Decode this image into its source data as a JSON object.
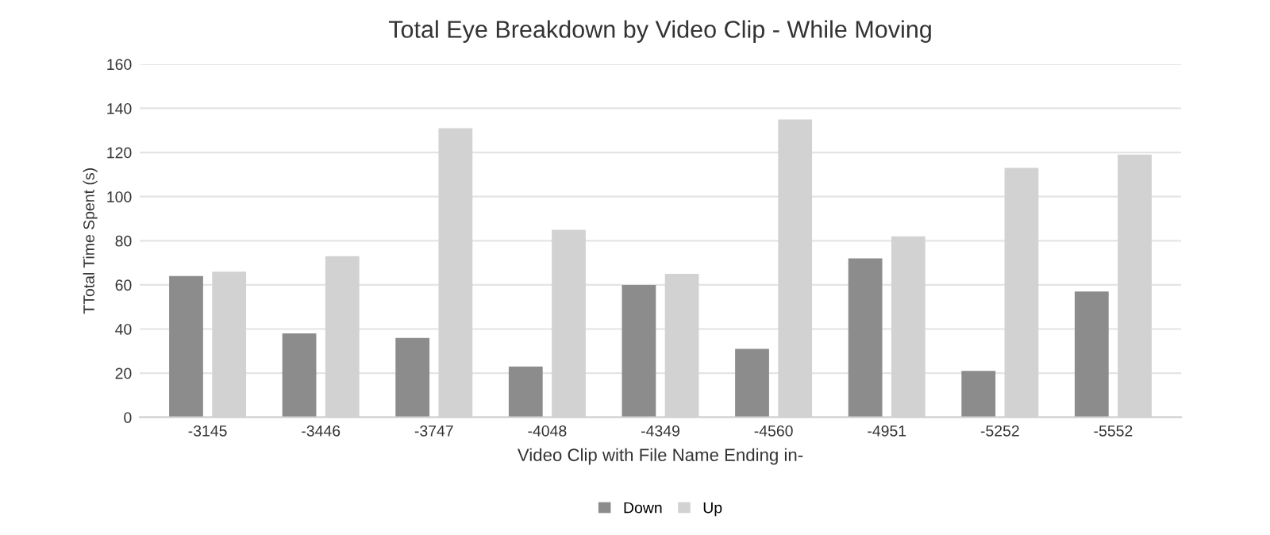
{
  "chart_data": {
    "type": "bar",
    "title": "Total Eye Breakdown by Video Clip - While Moving",
    "xlabel": "Video Clip with File Name Ending in-",
    "ylabel": "TTotal Time Spent (s)",
    "categories": [
      "-3145",
      "-3446",
      "-3747",
      "-4048",
      "-4349",
      "-4560",
      "-4951",
      "-5252",
      "-5552"
    ],
    "series": [
      {
        "name": "Down",
        "color": "#8c8c8c",
        "values": [
          64,
          38,
          36,
          23,
          60,
          31,
          72,
          21,
          57
        ]
      },
      {
        "name": "Up",
        "color": "#d2d2d2",
        "values": [
          66,
          73,
          131,
          85,
          65,
          135,
          82,
          113,
          119
        ]
      }
    ],
    "ylim": [
      0,
      160
    ],
    "yticks": [
      0,
      20,
      40,
      60,
      80,
      100,
      120,
      140,
      160
    ],
    "grid": "y",
    "legend": "bottom"
  }
}
